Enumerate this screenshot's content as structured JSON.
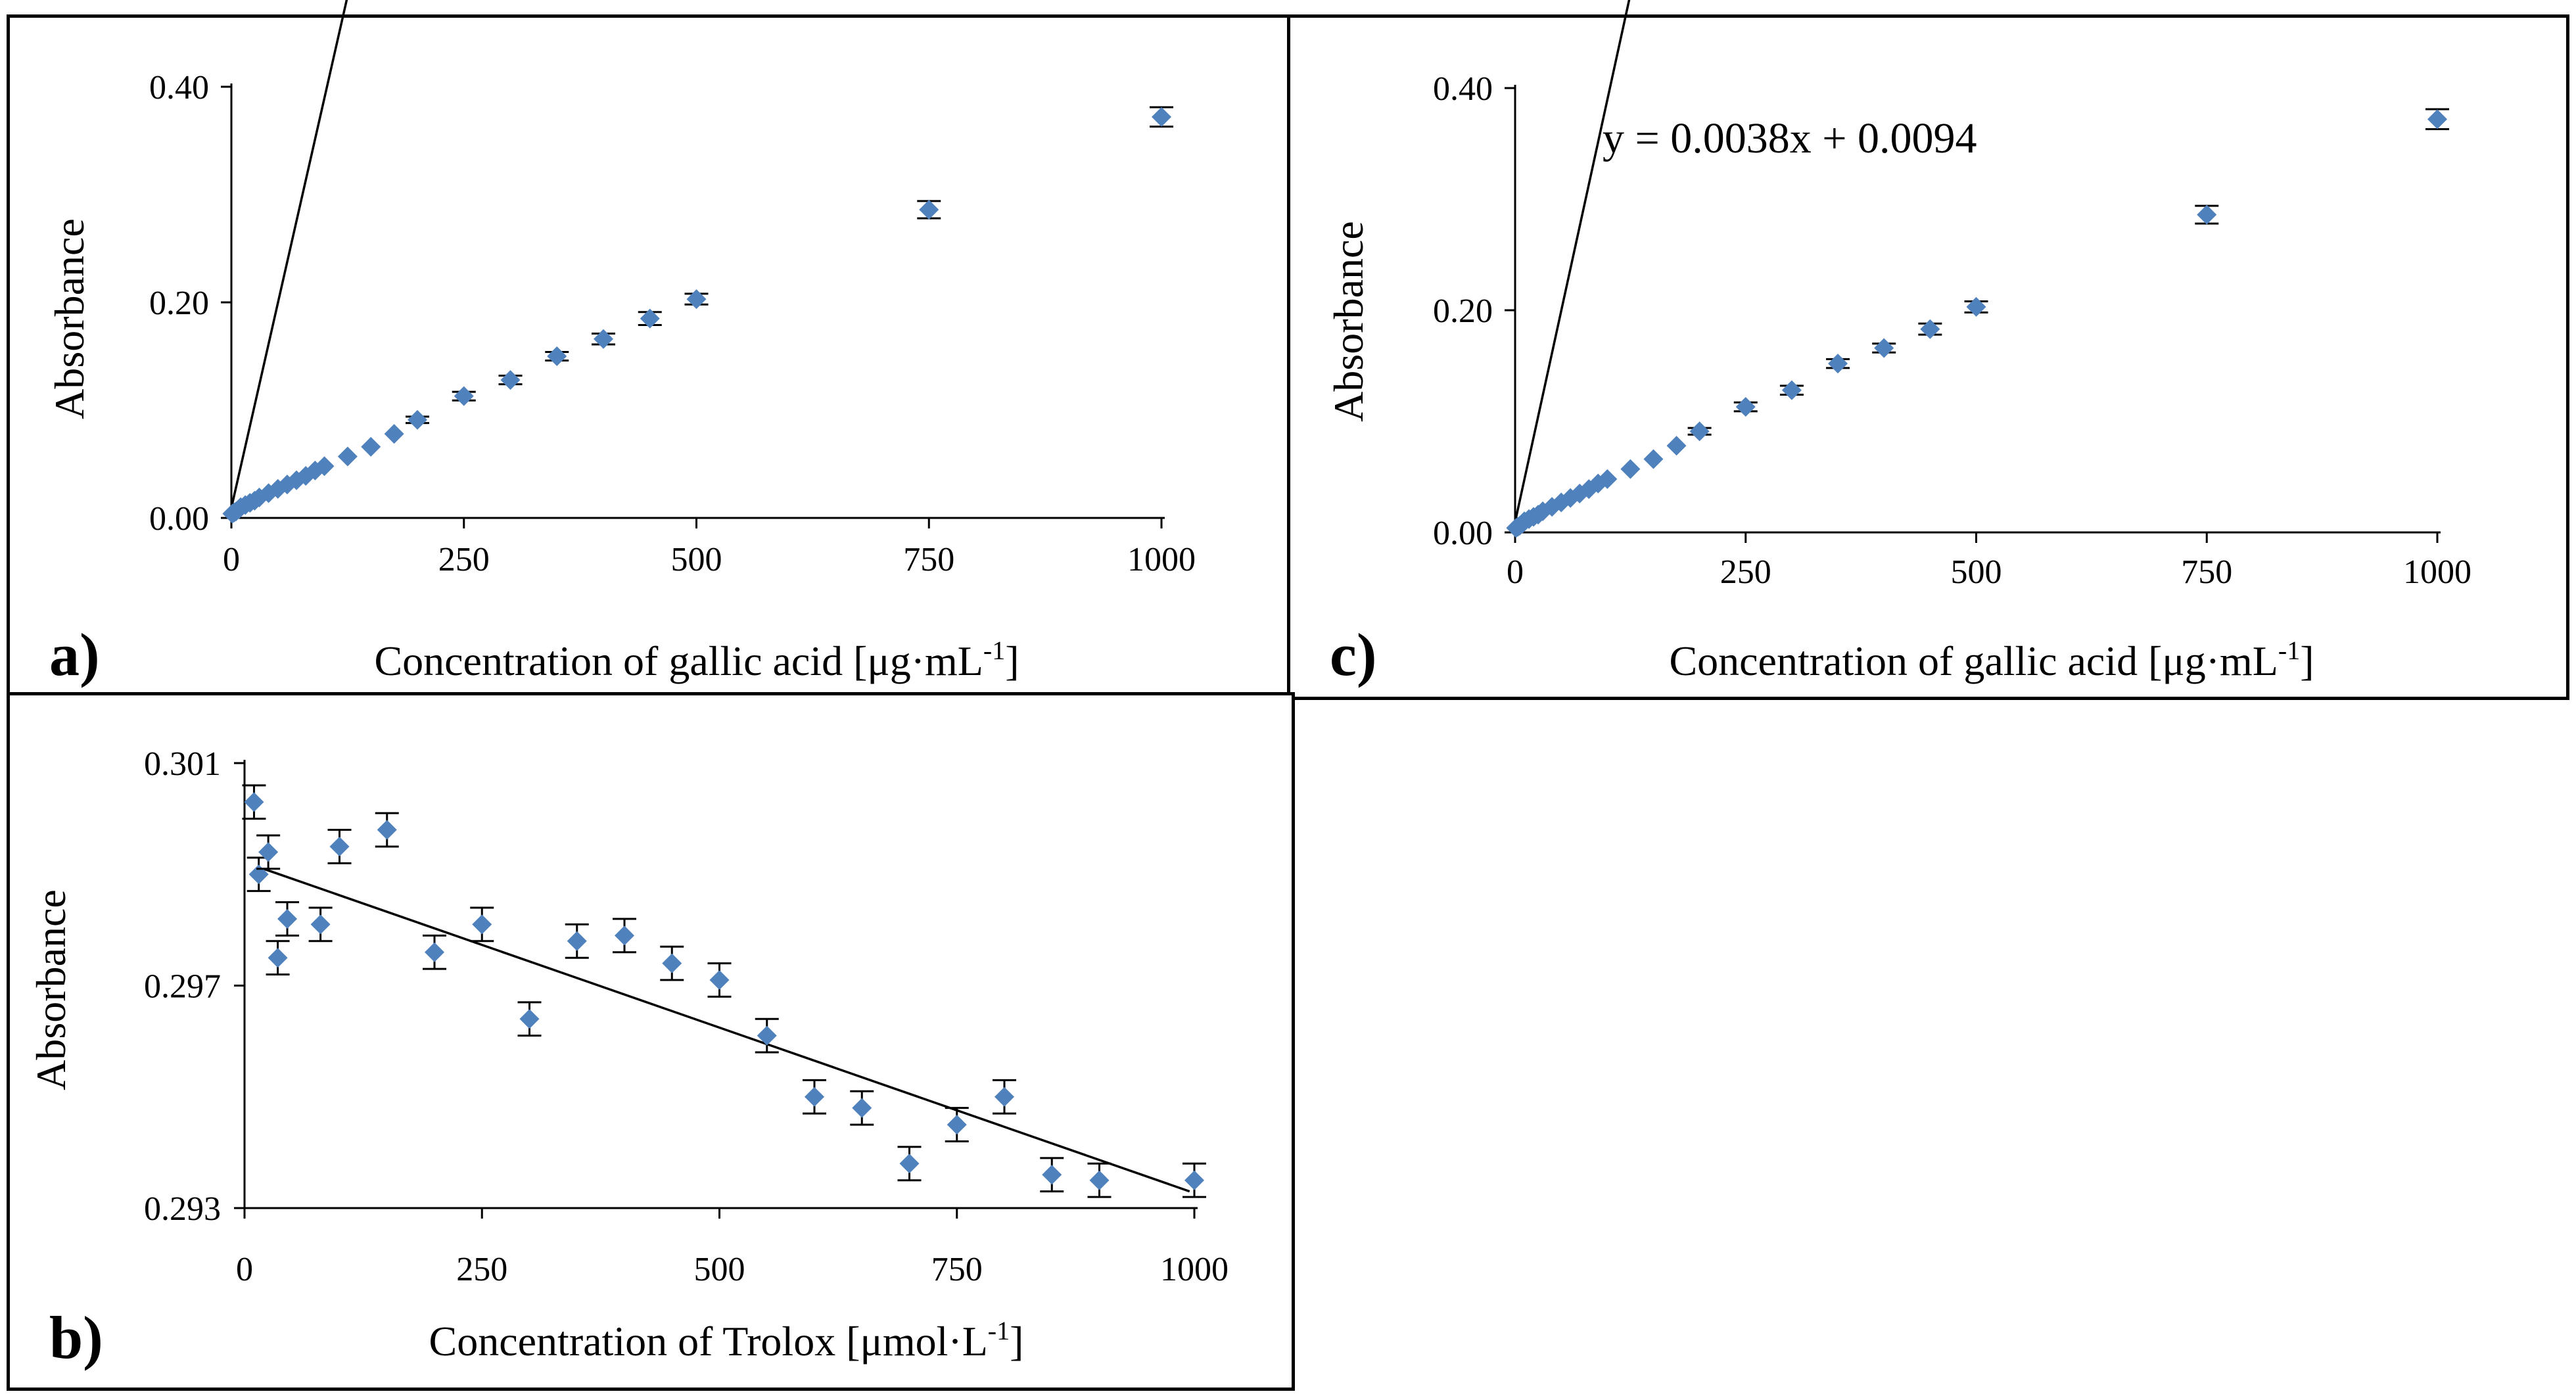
{
  "colors": {
    "marker": "#4f81bd",
    "line": "#000000",
    "axis": "#000000",
    "border": "#000000"
  },
  "panels": {
    "a": {
      "letter": "a)",
      "xlabel_main": "Concentration of  gallic acid [μg·mL",
      "xlabel_sup": "-1",
      "xlabel_end": "]",
      "ylabel": "Absorbance",
      "xticks": [
        "0",
        "250",
        "500",
        "750",
        "1000"
      ],
      "yticks": [
        "0.00",
        "0.20",
        "0.40"
      ]
    },
    "b": {
      "letter": "b)",
      "xlabel_main": "Concentration of  Trolox [μmol·L",
      "xlabel_sup": "-1",
      "xlabel_end": "]",
      "ylabel": "Absorbance",
      "xticks": [
        "0",
        "250",
        "500",
        "750",
        "1000"
      ],
      "yticks": [
        "0.293",
        "0.297",
        "0.301"
      ]
    },
    "c": {
      "letter": "c)",
      "xlabel_main": "Concentration of  gallic acid [μg·mL",
      "xlabel_sup": "-1",
      "xlabel_end": "]",
      "ylabel": "Absorbance",
      "xticks": [
        "0",
        "250",
        "500",
        "750",
        "1000"
      ],
      "yticks": [
        "0.00",
        "0.20",
        "0.40"
      ],
      "equation": "y = 0.0038x + 0.0094"
    }
  },
  "chart_data": [
    {
      "id": "a",
      "type": "scatter",
      "title": "",
      "xlabel": "Concentration of  gallic acid [μg·mL-1]",
      "ylabel": "Absorbance",
      "xlim": [
        0,
        1000
      ],
      "ylim": [
        0,
        0.4
      ],
      "x_ticks": [
        0,
        250,
        500,
        750,
        1000
      ],
      "y_ticks": [
        0,
        0.2,
        0.4
      ],
      "series": [
        {
          "name": "measurements",
          "x": [
            1,
            3,
            5,
            8,
            10,
            15,
            20,
            25,
            30,
            40,
            50,
            60,
            70,
            80,
            90,
            100,
            125,
            150,
            175,
            200,
            250,
            300,
            350,
            400,
            450,
            500,
            750,
            1000
          ],
          "y": [
            0.004,
            0.005,
            0.006,
            0.008,
            0.01,
            0.012,
            0.014,
            0.016,
            0.019,
            0.023,
            0.027,
            0.031,
            0.035,
            0.039,
            0.044,
            0.048,
            0.057,
            0.066,
            0.078,
            0.091,
            0.113,
            0.128,
            0.15,
            0.166,
            0.185,
            0.203,
            0.286,
            0.372
          ],
          "error": [
            0,
            0,
            0,
            0,
            0,
            0,
            0,
            0,
            0,
            0,
            0,
            0,
            0,
            0,
            0,
            0,
            0,
            0,
            0,
            0.003,
            0.004,
            0.004,
            0.004,
            0.005,
            0.006,
            0.005,
            0.008,
            0.009
          ]
        }
      ],
      "trendline": {
        "slope": 0.0038,
        "intercept": 0.0094
      }
    },
    {
      "id": "b",
      "type": "scatter",
      "title": "",
      "xlabel": "Concentration of  Trolox [μmol·L-1]",
      "ylabel": "Absorbance",
      "xlim": [
        0,
        1000
      ],
      "ylim": [
        0.293,
        0.301
      ],
      "x_ticks": [
        0,
        250,
        500,
        750,
        1000
      ],
      "y_ticks": [
        0.293,
        0.297,
        0.301
      ],
      "series": [
        {
          "name": "measurements",
          "x": [
            10,
            15,
            25,
            35,
            45,
            80,
            100,
            150,
            200,
            250,
            300,
            350,
            400,
            450,
            500,
            550,
            600,
            650,
            700,
            750,
            800,
            850,
            900,
            1000
          ],
          "y": [
            0.3003,
            0.299,
            0.2994,
            0.2975,
            0.2982,
            0.2981,
            0.2995,
            0.2998,
            0.2976,
            0.2981,
            0.2964,
            0.2978,
            0.2979,
            0.2974,
            0.2971,
            0.2961,
            0.295,
            0.2948,
            0.2938,
            0.2945,
            0.295,
            0.2936,
            0.2935,
            0.2935
          ],
          "error": [
            0.0003,
            0.0003,
            0.0003,
            0.0003,
            0.0003,
            0.0003,
            0.0003,
            0.0003,
            0.0003,
            0.0003,
            0.0003,
            0.0003,
            0.0003,
            0.0003,
            0.0003,
            0.0003,
            0.0003,
            0.0003,
            0.0003,
            0.0003,
            0.0003,
            0.0003,
            0.0003,
            0.0003
          ]
        }
      ],
      "trendline": {
        "x": [
          20,
          995
        ],
        "y": [
          0.2991,
          0.2933
        ]
      }
    },
    {
      "id": "c",
      "type": "scatter",
      "title": "",
      "xlabel": "Concentration of  gallic acid [μg·mL-1]",
      "ylabel": "Absorbance",
      "xlim": [
        0,
        1000
      ],
      "ylim": [
        0,
        0.4
      ],
      "x_ticks": [
        0,
        250,
        500,
        750,
        1000
      ],
      "y_ticks": [
        0,
        0.2,
        0.4
      ],
      "series": [
        {
          "name": "measurements",
          "x": [
            1,
            3,
            5,
            8,
            10,
            15,
            20,
            25,
            30,
            40,
            50,
            60,
            70,
            80,
            90,
            100,
            125,
            150,
            175,
            200,
            250,
            300,
            350,
            400,
            450,
            500,
            750,
            1000
          ],
          "y": [
            0.004,
            0.005,
            0.006,
            0.008,
            0.01,
            0.012,
            0.014,
            0.016,
            0.019,
            0.023,
            0.027,
            0.031,
            0.035,
            0.039,
            0.044,
            0.048,
            0.057,
            0.066,
            0.078,
            0.091,
            0.113,
            0.128,
            0.152,
            0.166,
            0.183,
            0.203,
            0.286,
            0.372
          ],
          "error": [
            0,
            0,
            0,
            0,
            0,
            0,
            0,
            0,
            0,
            0,
            0,
            0,
            0,
            0,
            0,
            0,
            0,
            0,
            0,
            0.003,
            0.004,
            0.004,
            0.004,
            0.004,
            0.005,
            0.005,
            0.008,
            0.009
          ]
        }
      ],
      "trendline": {
        "slope": 0.0038,
        "intercept": 0.0094
      },
      "equation": "y = 0.0038x + 0.0094"
    }
  ]
}
